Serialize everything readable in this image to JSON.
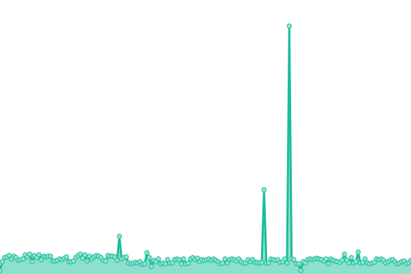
{
  "chart_data": {
    "type": "area",
    "title": "",
    "xlabel": "",
    "ylabel": "",
    "ylim": [
      0,
      400
    ],
    "grid": false,
    "markers": true,
    "colors": {
      "line": "#1abc9c",
      "fill": "#8ce0cd",
      "marker_fill": "#8fe3cf",
      "marker_stroke": "#1abc9c"
    },
    "values": [
      5,
      18,
      24,
      25,
      27,
      22,
      26,
      24,
      20,
      21,
      22,
      28,
      25,
      29,
      18,
      27,
      24,
      28,
      21,
      26,
      25,
      26,
      26,
      19,
      19,
      20,
      22,
      21,
      23,
      25,
      18,
      18,
      19,
      24,
      27,
      29,
      23,
      28,
      19,
      26,
      22,
      25,
      27,
      26,
      24,
      20,
      19,
      27,
      26,
      26,
      25,
      20,
      55,
      22,
      24,
      25,
      16,
      15,
      16,
      17,
      16,
      18,
      14,
      15,
      31,
      24,
      11,
      20,
      18,
      22,
      15,
      16,
      15,
      21,
      16,
      16,
      21,
      22,
      21,
      15,
      22,
      15,
      16,
      22,
      24,
      21,
      23,
      18,
      21,
      20,
      21,
      22,
      20,
      22,
      20,
      18,
      15,
      16,
      22,
      16,
      21,
      22,
      21,
      19,
      22,
      18,
      16,
      16,
      21,
      18,
      21,
      17,
      17,
      16,
      17,
      123,
      16,
      16,
      22,
      21,
      20,
      21,
      17,
      18,
      22,
      16,
      362,
      22,
      21,
      15,
      15,
      5,
      18,
      16,
      21,
      22,
      21,
      22,
      23,
      22,
      21,
      19,
      22,
      15,
      22,
      20,
      19,
      18,
      17,
      20,
      29,
      20,
      16,
      24,
      16,
      18,
      32,
      16,
      17,
      22,
      16,
      15,
      16,
      17,
      22,
      21,
      22,
      20,
      16,
      18,
      20,
      21,
      18,
      15,
      16,
      18,
      19,
      15,
      17,
      20
    ]
  }
}
